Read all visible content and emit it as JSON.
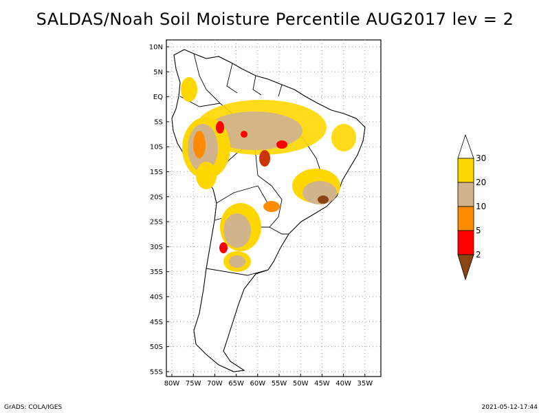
{
  "title": "SALDAS/Noah Soil Moisture Percentile AUG2017 lev = 2",
  "footer": {
    "left": "GrADS: COLA/IGES",
    "right": "2021-05-12-17:44"
  },
  "map": {
    "lat_ticks": [
      "10N",
      "5N",
      "EQ",
      "5S",
      "10S",
      "15S",
      "20S",
      "25S",
      "30S",
      "35S",
      "40S",
      "45S",
      "50S",
      "55S"
    ],
    "lon_ticks": [
      "80W",
      "75W",
      "70W",
      "65W",
      "60W",
      "55W",
      "50W",
      "45W",
      "40W",
      "35W"
    ],
    "grid": "dotted",
    "lon_range": [
      -80,
      -33
    ],
    "lat_range": [
      -56,
      11
    ]
  },
  "legend": {
    "placement": "right",
    "labels": [
      "2",
      "5",
      "10",
      "20",
      "30"
    ],
    "colors": {
      "below_2": "#8B4513",
      "2_5": "#ff0000",
      "5_10": "#ff8c00",
      "10_20": "#d2b48c",
      "20_30": "#ffd700",
      "above_30": "#ffffff"
    }
  }
}
